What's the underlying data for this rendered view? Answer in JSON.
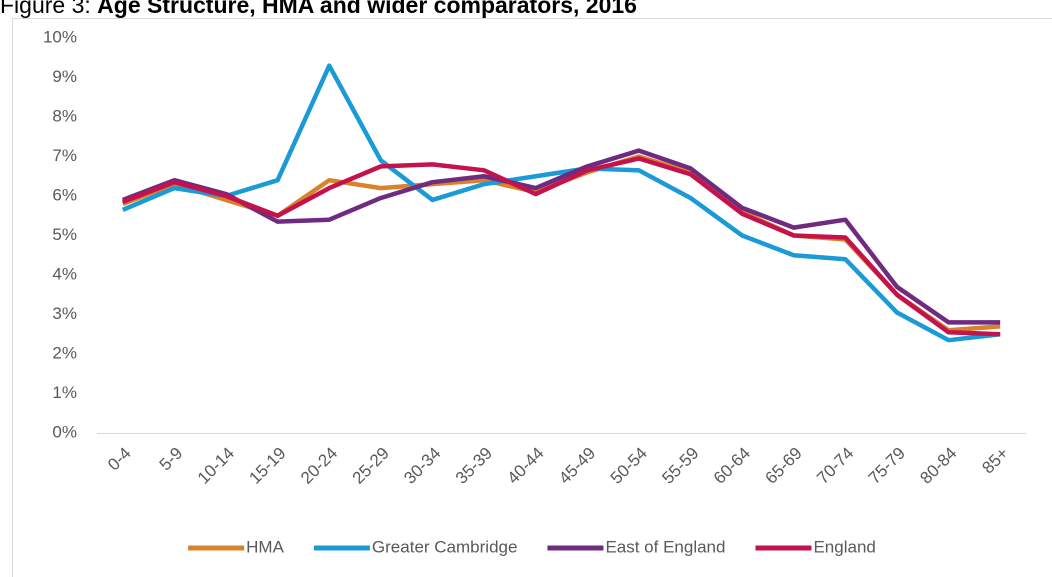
{
  "chart_data": {
    "type": "line",
    "figure_label": "Figure 3:",
    "title": "Age Structure, HMA and wider comparators, 2016",
    "categories": [
      "0-4",
      "5-9",
      "10-14",
      "15-19",
      "20-24",
      "25-29",
      "30-34",
      "35-39",
      "40-44",
      "45-49",
      "50-54",
      "55-59",
      "60-64",
      "65-69",
      "70-74",
      "75-79",
      "80-84",
      "85+"
    ],
    "series": [
      {
        "name": "HMA",
        "color": "#d8822c",
        "values": [
          5.8,
          6.3,
          5.9,
          5.5,
          6.4,
          6.2,
          6.3,
          6.4,
          6.1,
          6.6,
          7.0,
          6.6,
          5.6,
          5.0,
          4.9,
          3.5,
          2.6,
          2.7
        ]
      },
      {
        "name": "Greater Cambridge",
        "color": "#1a9ad6",
        "values": [
          5.65,
          6.2,
          6.0,
          6.4,
          9.3,
          6.9,
          5.9,
          6.3,
          6.5,
          6.7,
          6.65,
          5.95,
          5.0,
          4.5,
          4.4,
          3.05,
          2.35,
          2.5
        ]
      },
      {
        "name": "East of England",
        "color": "#6f2b80",
        "values": [
          5.9,
          6.4,
          6.05,
          5.35,
          5.4,
          5.95,
          6.35,
          6.5,
          6.2,
          6.75,
          7.15,
          6.7,
          5.7,
          5.2,
          5.4,
          3.7,
          2.8,
          2.8
        ]
      },
      {
        "name": "England",
        "color": "#c4134c",
        "values": [
          5.85,
          6.35,
          6.0,
          5.5,
          6.2,
          6.75,
          6.8,
          6.65,
          6.05,
          6.65,
          6.95,
          6.55,
          5.55,
          5.0,
          4.95,
          3.5,
          2.55,
          2.5
        ]
      }
    ],
    "ylim": [
      0,
      10
    ],
    "yticks": [
      {
        "value": 0,
        "label": "0%"
      },
      {
        "value": 1,
        "label": "1%"
      },
      {
        "value": 2,
        "label": "2%"
      },
      {
        "value": 3,
        "label": "3%"
      },
      {
        "value": 4,
        "label": "4%"
      },
      {
        "value": 5,
        "label": "5%"
      },
      {
        "value": 6,
        "label": "6%"
      },
      {
        "value": 7,
        "label": "7%"
      },
      {
        "value": 8,
        "label": "8%"
      },
      {
        "value": 9,
        "label": "9%"
      },
      {
        "value": 10,
        "label": "10%"
      }
    ],
    "grid": false,
    "legend": "bottom"
  }
}
